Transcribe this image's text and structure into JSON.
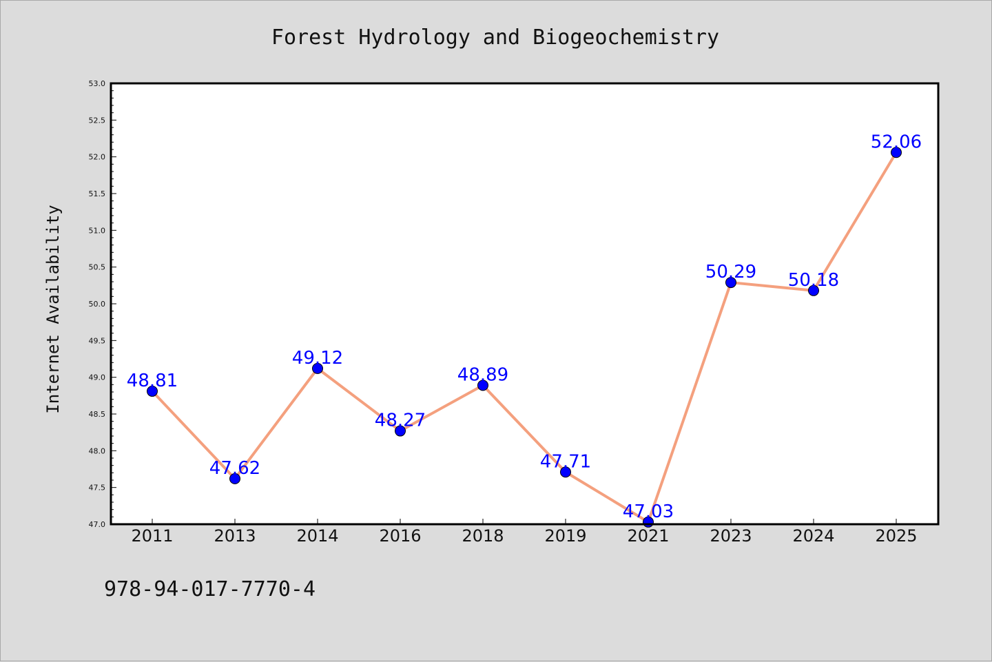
{
  "chart_data": {
    "type": "line",
    "title": "Forest Hydrology and Biogeochemistry",
    "ylabel": "Internet Availability",
    "xlabel": "",
    "categories": [
      "2011",
      "2013",
      "2014",
      "2016",
      "2018",
      "2019",
      "2021",
      "2023",
      "2024",
      "2025"
    ],
    "series": [
      {
        "values": [
          48.81,
          47.62,
          49.12,
          48.27,
          48.89,
          47.71,
          47.03,
          50.29,
          50.18,
          52.06
        ]
      }
    ],
    "data_labels": [
      "48.81",
      "47.62",
      "49.12",
      "48.27",
      "48.89",
      "47.71",
      "47.03",
      "50.29",
      "50.18",
      "52.06"
    ],
    "ylim": [
      47.0,
      53.0
    ],
    "yticks": [
      "47.0",
      "47.5",
      "48.0",
      "48.5",
      "49.0",
      "49.5",
      "50.0",
      "50.5",
      "51.0",
      "51.5",
      "52.0",
      "52.5",
      "53.0"
    ],
    "grid": false,
    "colors": {
      "line": "#f4a07e",
      "marker": "#0000ff",
      "data_label": "#0000ff",
      "background": "#dcdcdc",
      "plot_background": "#ffffff"
    }
  },
  "annotation": "978-94-017-7770-4"
}
